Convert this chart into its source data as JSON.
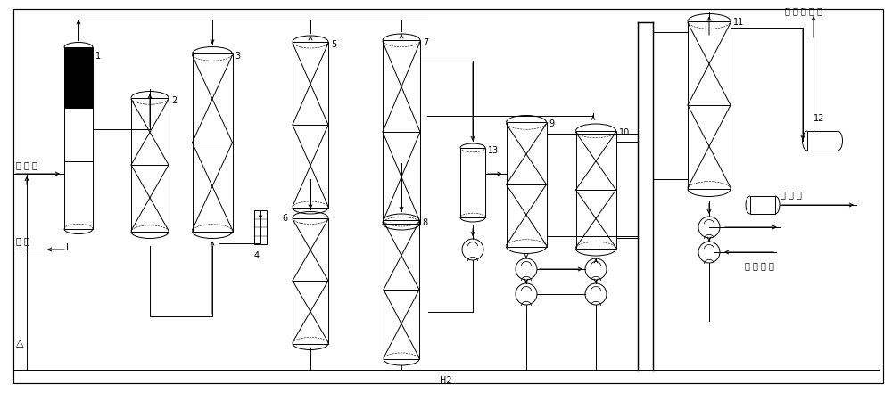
{
  "figsize": [
    10.0,
    4.41
  ],
  "dpi": 100,
  "bg": "#ffffff",
  "lc": "#000000",
  "lw": 0.7,
  "labels": {
    "jiao_lu_qi": "焦 炉 气",
    "you_wu": "油 污",
    "tian_ran_qi": "天 然 气 产 品",
    "leng_ning_shui": "冷 凝 水",
    "guo_lu_gei_shui": "锅 炉 给 水",
    "H2": "H2",
    "delta": "△"
  }
}
